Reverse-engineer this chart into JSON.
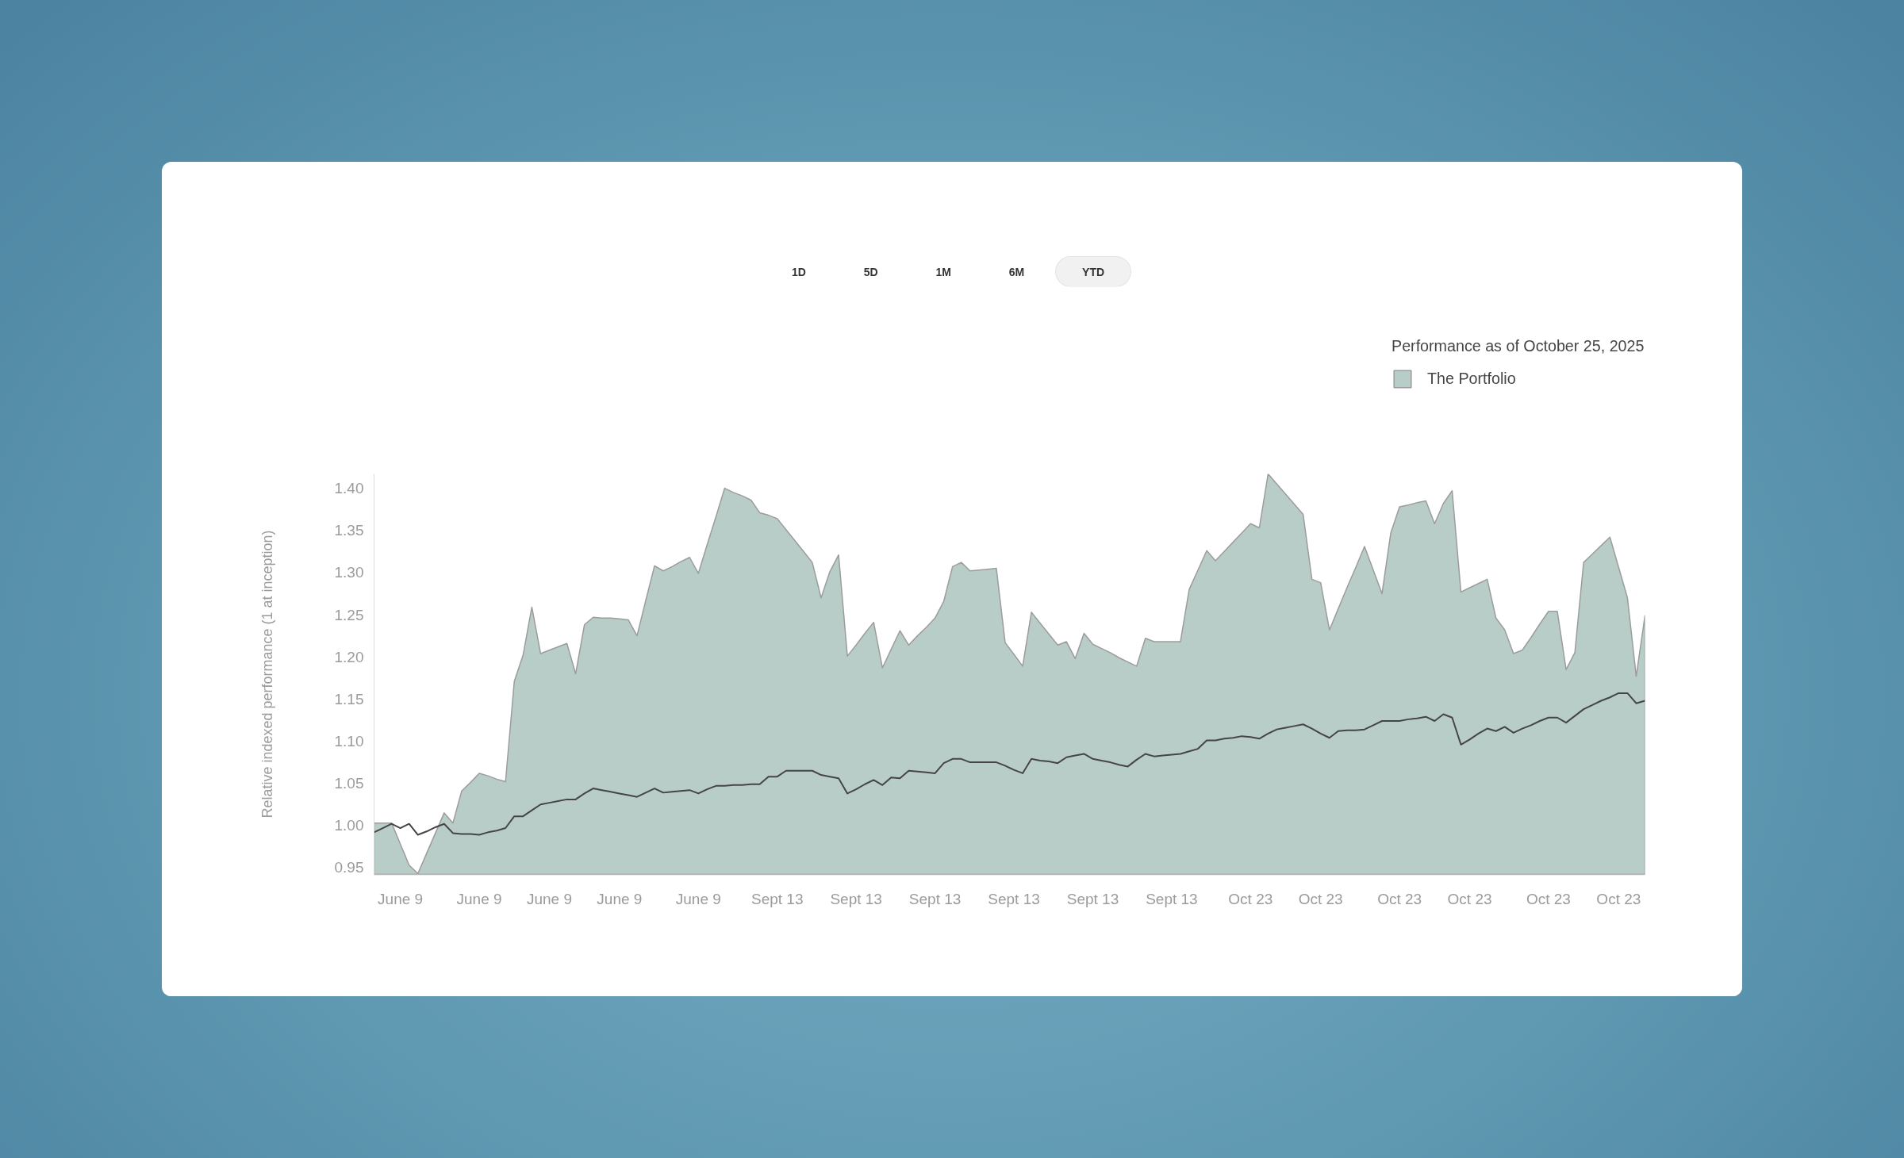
{
  "chart_data": {
    "type": "area",
    "legend_title": "Performance as of October 25, 2025",
    "ylabel": "Relative indexed performance (1 at inception)",
    "annotations": [
      "1D",
      "5D",
      "1M",
      "6M",
      "YTD"
    ],
    "legend": "top right",
    "categories": [
      null,
      null,
      null,
      "June 9",
      null,
      null,
      null,
      null,
      null,
      null,
      null,
      null,
      "June 9",
      null,
      null,
      null,
      null,
      null,
      null,
      null,
      "June 9",
      null,
      null,
      null,
      null,
      null,
      null,
      null,
      "June 9",
      null,
      null,
      null,
      null,
      null,
      null,
      null,
      null,
      "June 9",
      null,
      null,
      null,
      null,
      null,
      null,
      null,
      null,
      "Sept 13",
      null,
      null,
      null,
      null,
      null,
      null,
      null,
      null,
      "Sept 13",
      null,
      null,
      null,
      null,
      null,
      null,
      null,
      null,
      "Sept 13",
      null,
      null,
      null,
      null,
      null,
      null,
      null,
      null,
      "Sept 13",
      null,
      null,
      null,
      null,
      null,
      null,
      null,
      null,
      "Sept 13",
      null,
      null,
      null,
      null,
      null,
      null,
      null,
      null,
      "Sept 13",
      null,
      null,
      null,
      null,
      null,
      null,
      null,
      null,
      "Oct 23",
      null,
      null,
      null,
      null,
      null,
      null,
      null,
      "Oct 23",
      null,
      null,
      null,
      null,
      null,
      null,
      null,
      null,
      "Oct 23",
      null,
      null,
      null,
      null,
      null,
      null,
      null,
      "Oct 23",
      null,
      null,
      null,
      null,
      null,
      null,
      null,
      null,
      "Oct 23",
      null,
      null,
      null,
      null,
      null,
      null,
      null,
      "Oct 23",
      null,
      null,
      null
    ],
    "ylim": [
      0.942,
      1.417
    ],
    "yticks": [
      0.95,
      {
        "value": 1.0,
        "label": "1.00"
      },
      1.05,
      {
        "value": 1.1,
        "label": "1.10"
      },
      1.15,
      {
        "value": 1.2,
        "label": "1.20"
      },
      1.25,
      {
        "value": 1.3,
        "label": "1.30"
      },
      1.35,
      {
        "value": 1.4,
        "label": "1.40"
      }
    ],
    "series": [
      {
        "name": "The Portfolio",
        "color": "#b8cdc8",
        "values": [
          1.003,
          1.003,
          1.003,
          0.978,
          0.953,
          0.943,
          0.967,
          0.991,
          1.015,
          1.003,
          1.041,
          1.051,
          1.062,
          1.059,
          1.055,
          1.052,
          1.171,
          1.202,
          1.259,
          1.204,
          1.208,
          1.212,
          1.216,
          1.18,
          1.238,
          1.247,
          1.246,
          1.246,
          1.245,
          1.244,
          1.225,
          1.267,
          1.308,
          1.302,
          1.307,
          1.313,
          1.318,
          1.299,
          1.333,
          1.366,
          1.4,
          1.395,
          1.391,
          1.386,
          1.371,
          1.368,
          1.364,
          1.351,
          1.338,
          1.325,
          1.312,
          1.27,
          1.301,
          1.321,
          1.201,
          1.214,
          1.228,
          1.241,
          1.187,
          1.209,
          1.231,
          1.214,
          1.225,
          1.235,
          1.246,
          1.266,
          1.307,
          1.312,
          1.302,
          1.303,
          1.304,
          1.305,
          1.217,
          1.203,
          1.189,
          1.253,
          1.24,
          1.227,
          1.214,
          1.218,
          1.198,
          1.228,
          1.215,
          1.21,
          1.205,
          1.199,
          1.194,
          1.189,
          1.222,
          1.218,
          1.218,
          1.218,
          1.218,
          1.28,
          1.303,
          1.326,
          1.314,
          1.325,
          1.336,
          1.347,
          1.358,
          1.353,
          1.417,
          1.405,
          1.393,
          1.381,
          1.369,
          1.292,
          1.288,
          1.232,
          1.257,
          1.282,
          1.306,
          1.331,
          1.303,
          1.275,
          1.347,
          1.378,
          1.38,
          1.383,
          1.385,
          1.358,
          1.382,
          1.397,
          1.277,
          1.282,
          1.287,
          1.292,
          1.246,
          1.232,
          1.204,
          1.208,
          1.223,
          1.239,
          1.254,
          1.254,
          1.185,
          1.205,
          1.312,
          1.322,
          1.332,
          1.342,
          1.306,
          1.27,
          1.177,
          1.249
        ]
      },
      {
        "type": "line",
        "color": "#454545",
        "values": [
          0.992,
          0.997,
          1.002,
          0.997,
          1.002,
          0.989,
          0.993,
          0.998,
          1.002,
          0.991,
          0.99,
          0.99,
          0.989,
          0.992,
          0.994,
          0.997,
          1.011,
          1.011,
          1.018,
          1.025,
          1.027,
          1.029,
          1.031,
          1.031,
          1.038,
          1.044,
          1.042,
          1.04,
          1.038,
          1.036,
          1.034,
          1.039,
          1.044,
          1.039,
          1.04,
          1.041,
          1.042,
          1.038,
          1.043,
          1.047,
          1.047,
          1.048,
          1.048,
          1.049,
          1.049,
          1.058,
          1.058,
          1.065,
          1.065,
          1.065,
          1.065,
          1.06,
          1.058,
          1.056,
          1.038,
          1.043,
          1.049,
          1.054,
          1.048,
          1.057,
          1.056,
          1.065,
          1.064,
          1.063,
          1.062,
          1.074,
          1.079,
          1.079,
          1.075,
          1.075,
          1.075,
          1.075,
          1.071,
          1.066,
          1.062,
          1.079,
          1.077,
          1.076,
          1.074,
          1.081,
          1.083,
          1.085,
          1.079,
          1.077,
          1.075,
          1.072,
          1.07,
          1.078,
          1.085,
          1.082,
          1.083,
          1.084,
          1.085,
          1.088,
          1.091,
          1.101,
          1.101,
          1.103,
          1.104,
          1.106,
          1.105,
          1.103,
          1.109,
          1.114,
          1.116,
          1.118,
          1.12,
          1.115,
          1.109,
          1.104,
          1.112,
          1.113,
          1.113,
          1.114,
          1.119,
          1.124,
          1.124,
          1.124,
          1.126,
          1.127,
          1.129,
          1.124,
          1.132,
          1.128,
          1.096,
          1.102,
          1.109,
          1.115,
          1.112,
          1.117,
          1.11,
          1.115,
          1.119,
          1.124,
          1.128,
          1.128,
          1.122,
          1.13,
          1.138,
          1.143,
          1.148,
          1.152,
          1.157,
          1.157,
          1.145,
          1.148
        ]
      }
    ]
  }
}
